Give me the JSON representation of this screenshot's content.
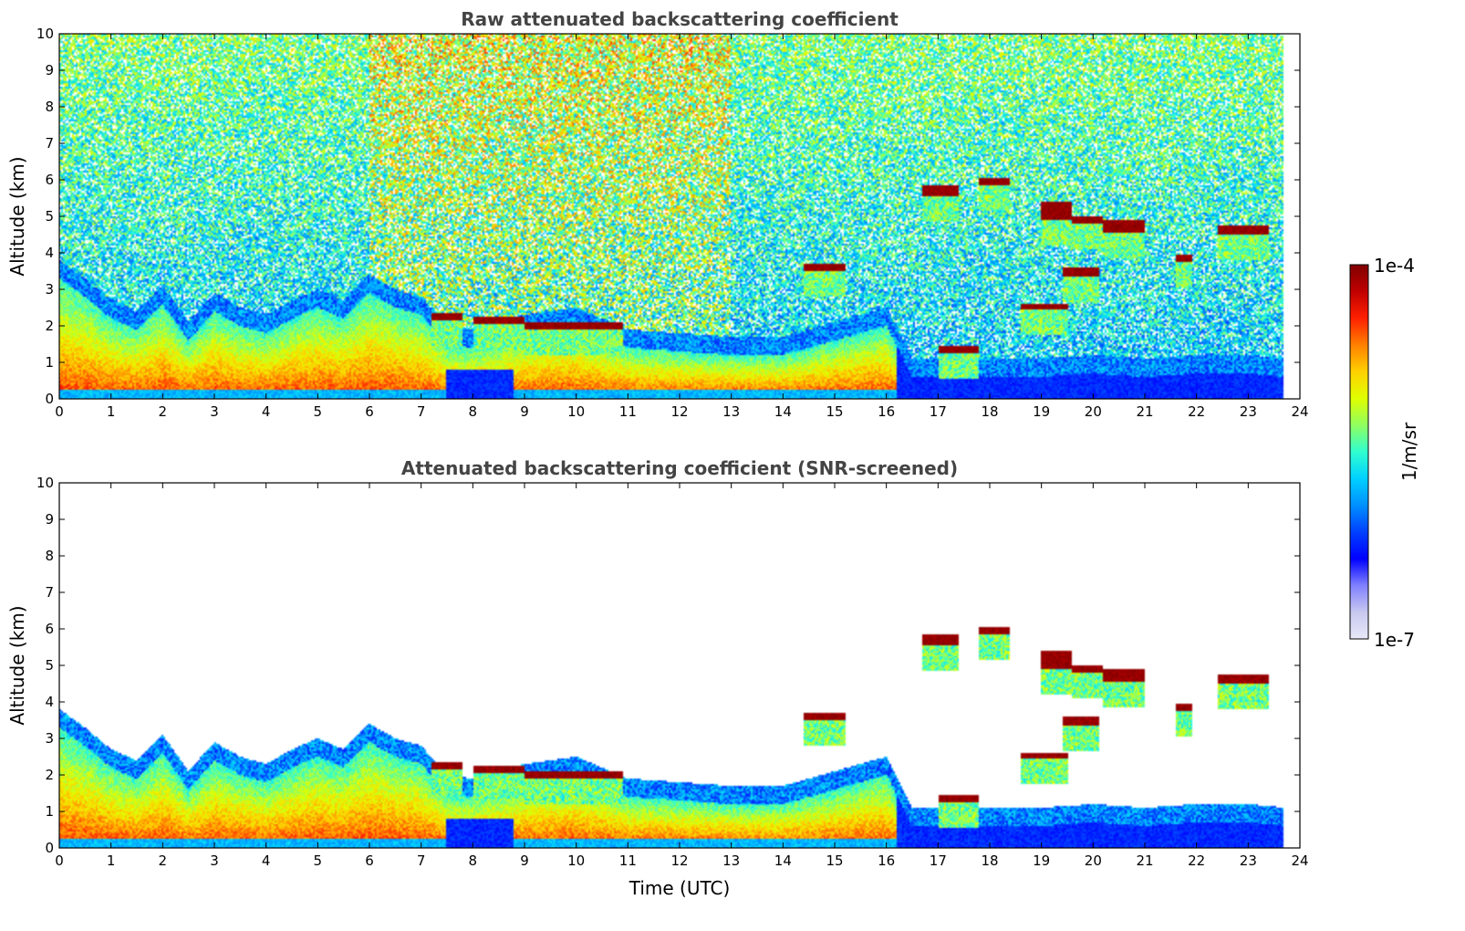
{
  "chart_data": [
    {
      "type": "heatmap",
      "title": "Raw attenuated backscattering coefficient",
      "xlabel": "",
      "ylabel": "Altitude (km)",
      "xlim": [
        0,
        24
      ],
      "ylim": [
        0,
        10
      ],
      "x_ticks": [
        "0",
        "1",
        "2",
        "3",
        "4",
        "5",
        "6",
        "7",
        "8",
        "9",
        "10",
        "11",
        "12",
        "13",
        "14",
        "15",
        "16",
        "17",
        "18",
        "19",
        "20",
        "21",
        "22",
        "23",
        "24"
      ],
      "y_ticks": [
        "0",
        "1",
        "2",
        "3",
        "4",
        "5",
        "6",
        "7",
        "8",
        "9",
        "10"
      ],
      "data_end_time": 23.7,
      "screened": false,
      "boundary_layer_top_km": [
        [
          0,
          3.3
        ],
        [
          0.5,
          2.8
        ],
        [
          1,
          2.2
        ],
        [
          1.5,
          1.9
        ],
        [
          2,
          2.6
        ],
        [
          2.5,
          1.6
        ],
        [
          3,
          2.4
        ],
        [
          3.5,
          2.0
        ],
        [
          4,
          1.8
        ],
        [
          4.5,
          2.2
        ],
        [
          5,
          2.5
        ],
        [
          5.5,
          2.2
        ],
        [
          6,
          2.9
        ],
        [
          6.5,
          2.5
        ],
        [
          7,
          2.3
        ],
        [
          7.5,
          1.5
        ],
        [
          8,
          1.4
        ],
        [
          9,
          1.8
        ],
        [
          10,
          2.0
        ],
        [
          11,
          1.4
        ],
        [
          12,
          1.3
        ],
        [
          13,
          1.2
        ],
        [
          14,
          1.2
        ],
        [
          15,
          1.6
        ],
        [
          16,
          2.0
        ],
        [
          16.5,
          0.6
        ],
        [
          17,
          0.6
        ],
        [
          18,
          0.6
        ],
        [
          19,
          0.6
        ],
        [
          20,
          0.7
        ],
        [
          21,
          0.6
        ],
        [
          22,
          0.7
        ],
        [
          23,
          0.7
        ],
        [
          23.7,
          0.6
        ]
      ],
      "cloud_layers": [
        {
          "start": 7.2,
          "end": 7.8,
          "top_km": 2.35,
          "base_km": 2.15
        },
        {
          "start": 8.0,
          "end": 9.0,
          "top_km": 2.25,
          "base_km": 2.05
        },
        {
          "start": 9.0,
          "end": 10.9,
          "top_km": 2.1,
          "base_km": 1.9
        },
        {
          "start": 14.4,
          "end": 15.2,
          "top_km": 3.7,
          "base_km": 3.5
        },
        {
          "start": 16.7,
          "end": 17.4,
          "top_km": 5.85,
          "base_km": 5.55
        },
        {
          "start": 17.8,
          "end": 18.4,
          "top_km": 6.05,
          "base_km": 5.85
        },
        {
          "start": 19.0,
          "end": 19.6,
          "top_km": 5.4,
          "base_km": 4.9
        },
        {
          "start": 19.6,
          "end": 20.2,
          "top_km": 5.0,
          "base_km": 4.8
        },
        {
          "start": 20.2,
          "end": 21.0,
          "top_km": 4.9,
          "base_km": 4.55
        },
        {
          "start": 22.4,
          "end": 23.4,
          "top_km": 4.75,
          "base_km": 4.5
        },
        {
          "start": 19.4,
          "end": 20.1,
          "top_km": 3.6,
          "base_km": 3.35
        },
        {
          "start": 18.6,
          "end": 19.5,
          "top_km": 2.6,
          "base_km": 2.45
        },
        {
          "start": 17.0,
          "end": 17.8,
          "top_km": 1.45,
          "base_km": 1.25
        },
        {
          "start": 21.6,
          "end": 21.9,
          "top_km": 3.95,
          "base_km": 3.75
        }
      ]
    },
    {
      "type": "heatmap",
      "title": "Attenuated backscattering coefficient (SNR-screened)",
      "xlabel": "Time (UTC)",
      "ylabel": "Altitude (km)",
      "xlim": [
        0,
        24
      ],
      "ylim": [
        0,
        10
      ],
      "x_ticks": [
        "0",
        "1",
        "2",
        "3",
        "4",
        "5",
        "6",
        "7",
        "8",
        "9",
        "10",
        "11",
        "12",
        "13",
        "14",
        "15",
        "16",
        "17",
        "18",
        "19",
        "20",
        "21",
        "22",
        "23",
        "24"
      ],
      "y_ticks": [
        "0",
        "1",
        "2",
        "3",
        "4",
        "5",
        "6",
        "7",
        "8",
        "9",
        "10"
      ],
      "data_end_time": 23.7,
      "screened": true
    }
  ],
  "colorbar": {
    "label": "1/m/sr",
    "max_label": "1e-4",
    "min_label": "1e-7",
    "scale": "log",
    "range": [
      1e-07,
      0.0001
    ],
    "colormap": [
      "#e8e8f8",
      "#c8c8f0",
      "#8080ff",
      "#0000ff",
      "#0040ff",
      "#0090ff",
      "#00d0ff",
      "#30ffd0",
      "#90ff60",
      "#e0ff00",
      "#ffd000",
      "#ff8000",
      "#ff2000",
      "#c00000",
      "#800000"
    ]
  }
}
